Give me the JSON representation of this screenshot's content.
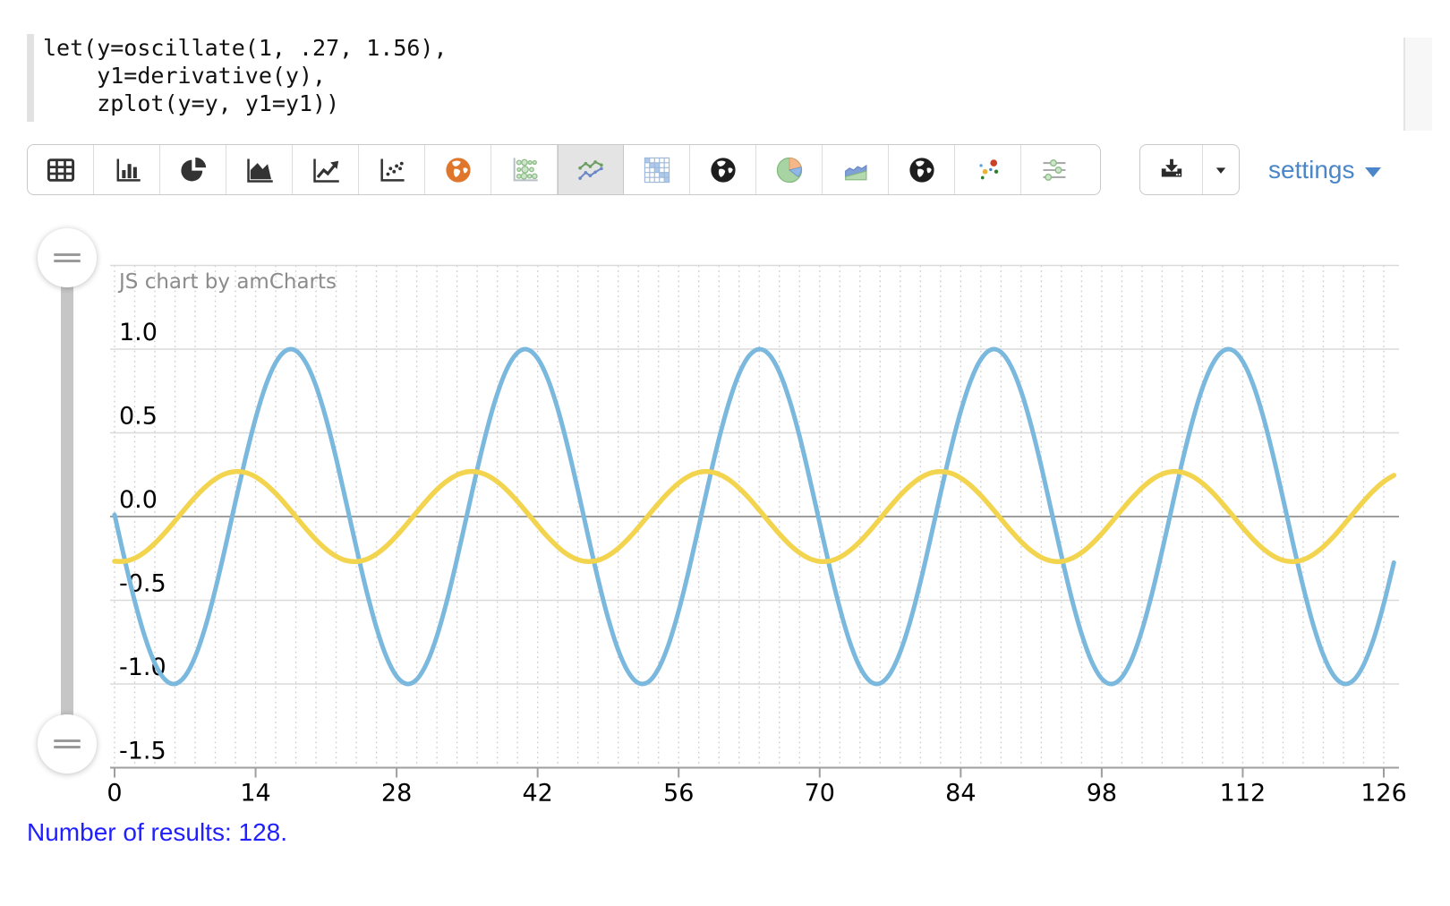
{
  "editor": {
    "lines": [
      "let(y=oscillate(1, .27, 1.56),",
      "    y1=derivative(y),",
      "    zplot(y=y, y1=y1))"
    ]
  },
  "toolbar": {
    "items": [
      {
        "icon": "table-icon",
        "selected": false
      },
      {
        "icon": "column-chart-icon",
        "selected": false
      },
      {
        "icon": "pie-chart-icon",
        "selected": false
      },
      {
        "icon": "area-chart-icon",
        "selected": false
      },
      {
        "icon": "trend-line-icon",
        "selected": false
      },
      {
        "icon": "scatter-plot-icon",
        "selected": false
      },
      {
        "icon": "globe-orange-icon",
        "selected": false
      },
      {
        "icon": "bubble-grid-icon",
        "selected": false
      },
      {
        "icon": "multi-line-chart-icon",
        "selected": true
      },
      {
        "icon": "stepped-table-icon",
        "selected": false
      },
      {
        "icon": "globe-dark-icon",
        "selected": false
      },
      {
        "icon": "pie-color-icon",
        "selected": false
      },
      {
        "icon": "stacked-area-icon",
        "selected": false
      },
      {
        "icon": "globe-dark2-icon",
        "selected": false
      },
      {
        "icon": "color-scatter-icon",
        "selected": false
      },
      {
        "icon": "sliders-icon",
        "selected": false
      }
    ]
  },
  "actions": {
    "download_icon": "download-tray-icon",
    "caret_icon": "caret-down-icon",
    "settings_label": "settings"
  },
  "results": {
    "text": "Number of results: 128."
  },
  "chart_data": {
    "type": "line",
    "title": "JS chart by amCharts",
    "n_points": 128,
    "x_ticks": [
      0,
      14,
      28,
      42,
      56,
      70,
      84,
      98,
      112,
      126
    ],
    "y_ticks": [
      1.0,
      0.5,
      0.0,
      -0.5,
      -1.0,
      -1.5
    ],
    "xlim": [
      0,
      127
    ],
    "ylim": [
      -1.5,
      1.5
    ],
    "minor_x_grid_step": 2,
    "grid": true,
    "legend_position": "none",
    "colors": {
      "grid": "#dadada",
      "zero_axis": "#9e9e9e",
      "minor_grid": "#d0d0d0",
      "labels": "#000000",
      "title": "#8c8c8c"
    },
    "series": [
      {
        "name": "y",
        "color": "#7ab8dd",
        "generator": {
          "type": "cosine",
          "amplitude": 1,
          "frequency": 0.27,
          "phase": 1.56
        }
      },
      {
        "name": "y1",
        "color": "#f3d44e",
        "generator": {
          "type": "derivative",
          "of": "y",
          "approx_amplitude": 0.27
        }
      }
    ]
  }
}
